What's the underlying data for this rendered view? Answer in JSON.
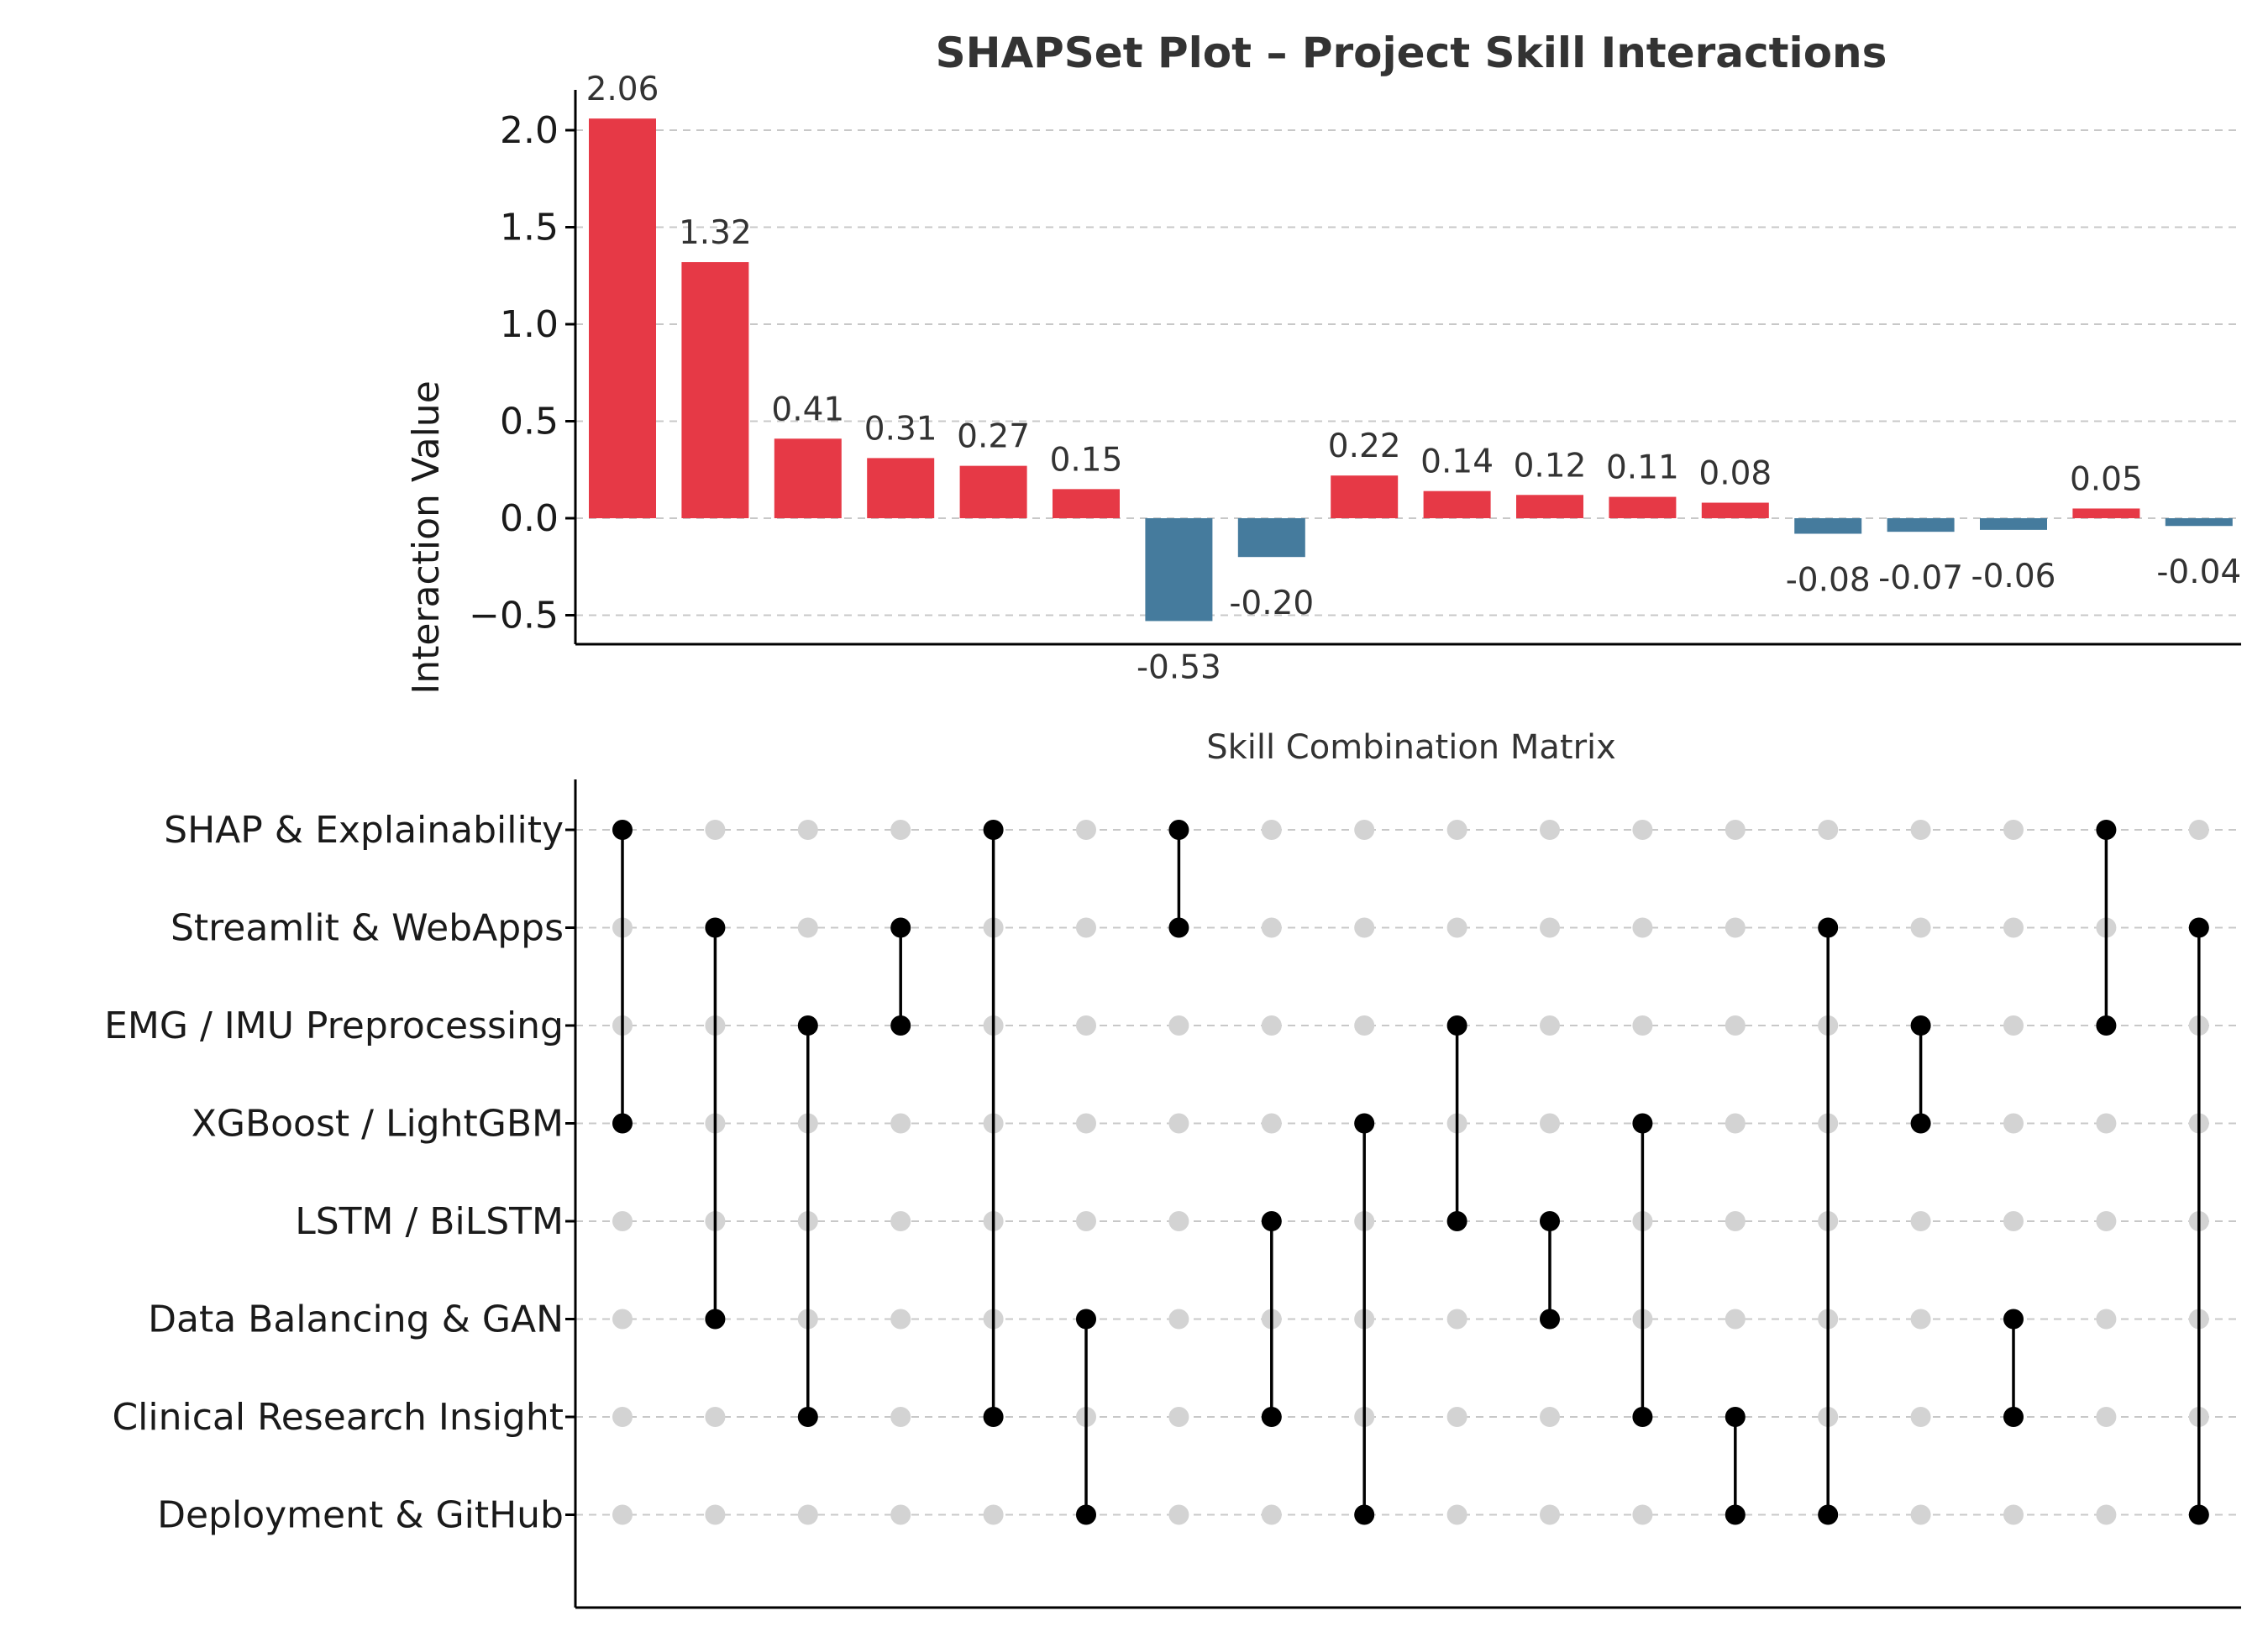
{
  "chart_data": [
    {
      "type": "bar",
      "title": "SHAPSet Plot – Project Skill Interactions",
      "ylabel": "Interaction Value",
      "xlabel": "",
      "ylim": [
        -0.65,
        2.2
      ],
      "yticks": [
        -0.5,
        0.0,
        0.5,
        1.0,
        1.5,
        2.0
      ],
      "ytick_labels": [
        "−0.5",
        "0.0",
        "0.5",
        "1.0",
        "1.5",
        "2.0"
      ],
      "grid": "y-dashed",
      "values": [
        2.06,
        1.32,
        0.41,
        0.31,
        0.27,
        0.15,
        -0.53,
        -0.2,
        0.22,
        0.14,
        0.12,
        0.11,
        0.08,
        -0.08,
        -0.07,
        -0.06,
        0.05,
        -0.04
      ],
      "labels": [
        "2.06",
        "1.32",
        "0.41",
        "0.31",
        "0.27",
        "0.15",
        "-0.53",
        "-0.20",
        "0.22",
        "0.14",
        "0.12",
        "0.11",
        "0.08",
        "-0.08",
        "-0.07",
        "-0.06",
        "0.05",
        "-0.04"
      ],
      "colors": {
        "positive": "#e63946",
        "negative": "#457b9d"
      }
    },
    {
      "type": "matrix",
      "title": "Skill Combination Matrix",
      "rows": [
        "SHAP & Explainability",
        "Streamlit & WebApps",
        "EMG / IMU Preprocessing",
        "XGBoost / LightGBM",
        "LSTM / BiLSTM",
        "Data Balancing & GAN",
        "Clinical Research Insight",
        "Deployment & GitHub"
      ],
      "combinations": [
        [
          0,
          3
        ],
        [
          1,
          5
        ],
        [
          2,
          6
        ],
        [
          1,
          2
        ],
        [
          0,
          6
        ],
        [
          5,
          7
        ],
        [
          0,
          1
        ],
        [
          4,
          6
        ],
        [
          3,
          7
        ],
        [
          2,
          4
        ],
        [
          4,
          5
        ],
        [
          3,
          6
        ],
        [
          6,
          7
        ],
        [
          1,
          7
        ],
        [
          2,
          3
        ],
        [
          5,
          6
        ],
        [
          0,
          2
        ],
        [
          1,
          7
        ]
      ],
      "colors": {
        "active": "#000000",
        "inactive": "#d3d3d3"
      }
    }
  ]
}
